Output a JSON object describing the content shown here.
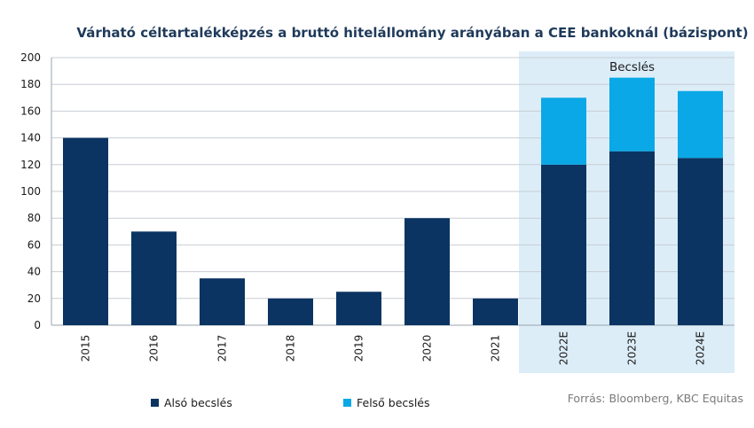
{
  "chart_data": {
    "type": "bar",
    "stacked": true,
    "title": "Várható céltartalékképzés a bruttó hitelállomány arányában a CEE bankoknál (bázispont)",
    "categories": [
      "2015",
      "2016",
      "2017",
      "2018",
      "2019",
      "2020",
      "2021",
      "2022E",
      "2023E",
      "2024E"
    ],
    "series": [
      {
        "name": "Alsó becslés",
        "color": "#0b3462",
        "values": [
          140,
          70,
          35,
          20,
          25,
          80,
          20,
          120,
          130,
          125
        ]
      },
      {
        "name": "Felső becslés",
        "color": "#0aa8e6",
        "values": [
          0,
          0,
          0,
          0,
          0,
          0,
          0,
          50,
          55,
          50
        ]
      }
    ],
    "ylim": [
      0,
      200
    ],
    "yticks": [
      0,
      20,
      40,
      60,
      80,
      100,
      120,
      140,
      160,
      180,
      200
    ],
    "grid": true,
    "legend": "bottom-left",
    "annotation": {
      "text": "Becslés",
      "categories": [
        "2022E",
        "2023E",
        "2024E"
      ],
      "shade_color": "#dcedf8"
    },
    "source": "Forrás: Bloomberg, KBC Equitas"
  }
}
